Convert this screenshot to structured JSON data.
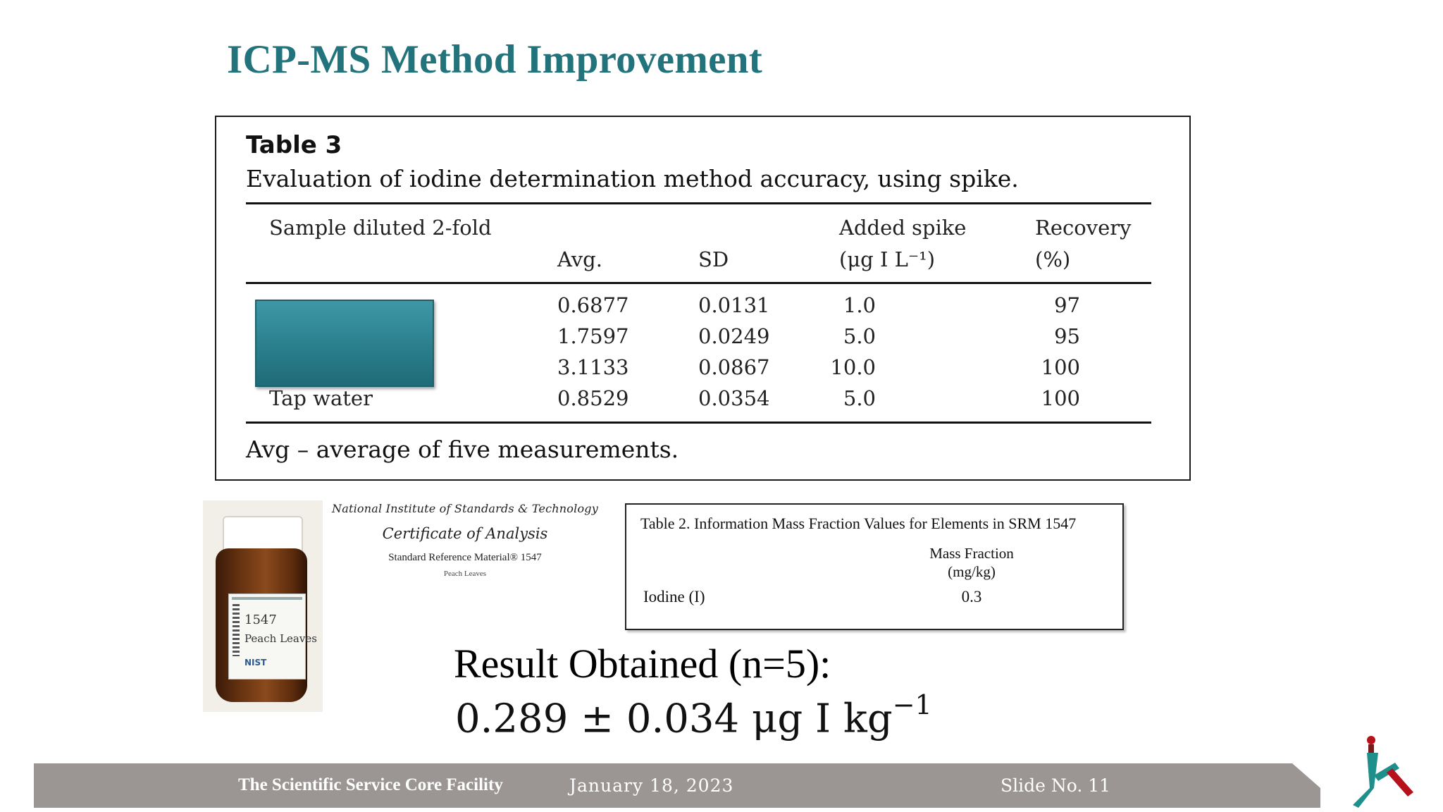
{
  "slide": {
    "title": "ICP-MS Method Improvement"
  },
  "table3": {
    "label": "Table 3",
    "caption": "Evaluation of iodine determination method accuracy, using spike.",
    "headers": {
      "sample": "Sample diluted 2-fold",
      "avg": "Avg.",
      "sd": "SD",
      "added_spike_line1": "Added spike",
      "added_spike_line2": "(μg I L⁻¹)",
      "recovery_line1": "Recovery",
      "recovery_line2": "(%)"
    },
    "rows": [
      {
        "sample": "",
        "avg": "0.6877",
        "sd": "0.0131",
        "spike": "1.0",
        "recovery": "97"
      },
      {
        "sample": "",
        "avg": "1.7597",
        "sd": "0.0249",
        "spike": "5.0",
        "recovery": "95"
      },
      {
        "sample": "",
        "avg": "3.1133",
        "sd": "0.0867",
        "spike": "10.0",
        "recovery": "100"
      },
      {
        "sample": "Tap water",
        "avg": "0.8529",
        "sd": "0.0354",
        "spike": "5.0",
        "recovery": "100"
      }
    ],
    "footnote": "Avg – average of five measurements."
  },
  "certificate": {
    "institute": "National Institute of Standards & Technology",
    "title": "Certificate of Analysis",
    "srm": "Standard Reference Material® 1547",
    "material": "Peach Leaves"
  },
  "bottle_label": {
    "number": "1547",
    "name": "Peach Leaves",
    "brand": "NIST"
  },
  "table2": {
    "title": "Table 2.  Information Mass Fraction Values for Elements in SRM 1547",
    "col_line1": "Mass Fraction",
    "col_line2": "(mg/kg)",
    "element": "Iodine (I)",
    "value": "0.3"
  },
  "result": {
    "title": "Result Obtained (n=5):",
    "value": "0.289 ± 0.034 μg  I  kg",
    "exponent": "−1"
  },
  "footer": {
    "org": "The Scientific Service Core Facility",
    "date": "January 18, 2023",
    "slide_no": "Slide No. 11"
  },
  "colors": {
    "title": "#22737b",
    "footer_bar": "#9b9694",
    "overlay": "#2b7f8d"
  }
}
